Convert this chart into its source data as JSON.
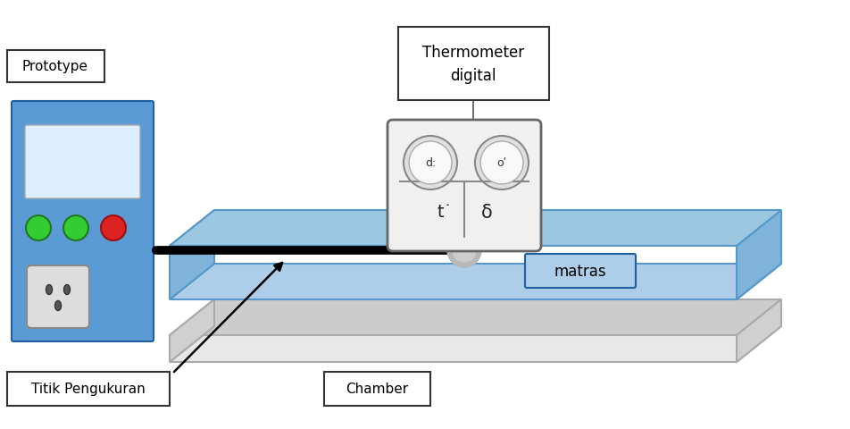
{
  "bg_color": "#ffffff",
  "thermometer_label": "Thermometer\ndigital",
  "matras_label": "matras",
  "chamber_label": "Chamber",
  "titik_label": "Titik Pengukuran",
  "prototype_label": "Prototype",
  "blue_color": "#5b9bd5",
  "light_blue": "#aecde8",
  "dark_blue": "#2e75b6",
  "box_border": "#333333",
  "text_color": "#000000",
  "btn_colors": [
    "#33cc33",
    "#33cc33",
    "#dd2222"
  ],
  "btn_borders": [
    "#227722",
    "#227722",
    "#991111"
  ]
}
